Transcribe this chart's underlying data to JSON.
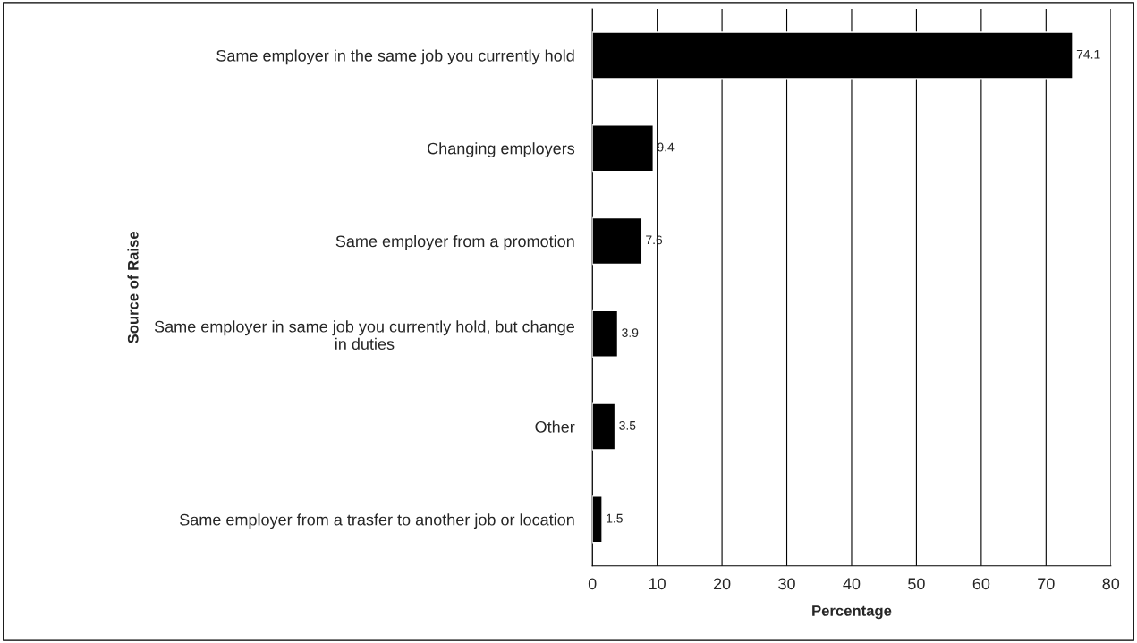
{
  "chart_data": {
    "type": "bar",
    "orientation": "horizontal",
    "xlabel": "Percentage",
    "ylabel": "Source of Raise",
    "categories": [
      "Same employer in the same job you currently hold",
      "Changing employers",
      "Same employer from a promotion",
      "Same employer in same job you currently hold, but change\nin duties",
      "Other",
      "Same employer from a trasfer to another job or location"
    ],
    "values": [
      74.1,
      9.4,
      7.6,
      3.9,
      3.5,
      1.5
    ],
    "color": "#000000",
    "xlim": [
      0,
      80
    ],
    "xticks": [
      0,
      10,
      20,
      30,
      40,
      50,
      60,
      70,
      80
    ],
    "grid": "x",
    "data_labels": true
  }
}
